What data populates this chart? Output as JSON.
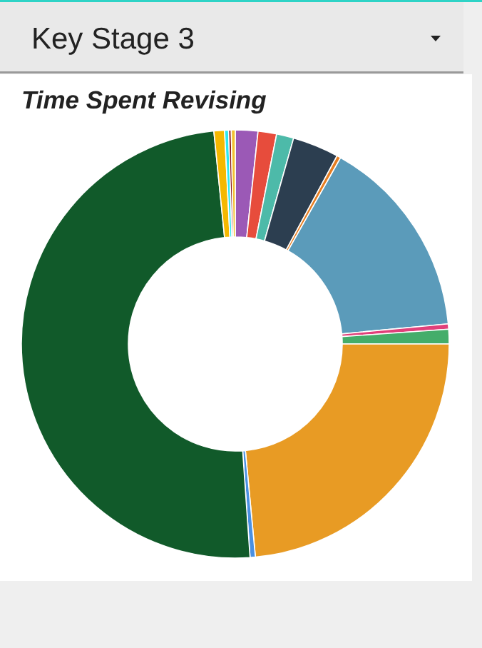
{
  "chart_data": {
    "type": "donut",
    "title": "Time Spent Revising",
    "annotations": [
      "Key Stage 3"
    ],
    "categories": [
      null,
      null,
      null,
      null,
      null,
      null,
      null,
      null,
      null,
      null,
      null,
      null,
      null,
      null,
      null
    ],
    "values": [
      1.7,
      1.4,
      1.3,
      3.5,
      0.3,
      15.3,
      0.4,
      1.1,
      23.5,
      0.4,
      49.5,
      0.8,
      0.3,
      0.2,
      0.3
    ],
    "colors": [
      "#9b59b6",
      "#e74c3c",
      "#4dbaa9",
      "#2c3e50",
      "#e67e22",
      "#5b9bba",
      "#e0407a",
      "#44ad6a",
      "#e89b24",
      "#4a90e2",
      "#115a2a",
      "#f5b800",
      "#2ee8f0",
      "#8b1a1a",
      "#f2c230"
    ]
  }
}
